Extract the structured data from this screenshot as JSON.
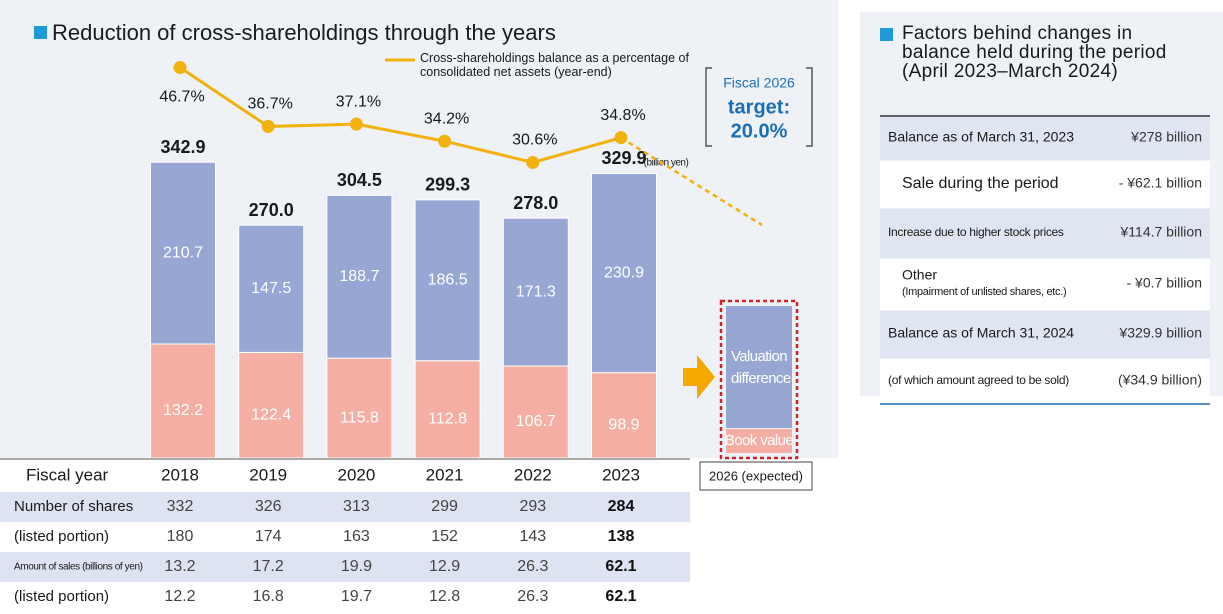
{
  "chart_data": {
    "type": "bar",
    "stacked": true,
    "title": "Reduction of cross-shareholdings through the years",
    "categories": [
      "2018",
      "2019",
      "2020",
      "2021",
      "2022",
      "2023"
    ],
    "series": [
      {
        "name": "Book value",
        "color": "#f4aea3",
        "values": [
          132.2,
          122.4,
          115.8,
          112.8,
          106.7,
          98.9
        ]
      },
      {
        "name": "Valuation difference",
        "color": "#97a6d3",
        "values": [
          210.7,
          147.5,
          188.7,
          186.5,
          171.3,
          230.9
        ]
      },
      {
        "name": "Cross-shareholdings balance as a percentage of consolidated net assets (year-end)",
        "type": "line",
        "axis": "y2",
        "color": "#f2b10c",
        "values": [
          46.7,
          36.7,
          37.1,
          34.2,
          30.6,
          34.8
        ],
        "value_labels": [
          "46.7%",
          "36.7%",
          "37.1%",
          "34.2%",
          "30.6%",
          "34.8%"
        ]
      }
    ],
    "totals": [
      342.9,
      270,
      304.5,
      299.3,
      278,
      329.9
    ],
    "total_value_labels": [
      "342.9",
      "270.0",
      "304.5",
      "299.3",
      "278.0",
      "329.9"
    ],
    "unit": "(billion yen)",
    "ylim": [
      0,
      400
    ],
    "y2lim": [
      10,
      50
    ],
    "target": {
      "title": "Fiscal 2026",
      "label": "target:",
      "value": 20,
      "value_label": "20.0%"
    },
    "expected_category": "2026 (expected)"
  },
  "table": {
    "header": "Fiscal year",
    "rows": [
      {
        "label": "Number of shares",
        "values": [
          332,
          326,
          313,
          299,
          293,
          284
        ]
      },
      {
        "label": "(listed portion)",
        "values": [
          180,
          174,
          163,
          152,
          143,
          138
        ]
      },
      {
        "label": "Amount of sales (billions of yen)",
        "values": [
          13.2,
          17.2,
          19.9,
          12.9,
          26.3,
          62.1
        ]
      },
      {
        "label": "(listed portion)",
        "values": [
          12.2,
          16.8,
          19.7,
          12.8,
          26.3,
          62.1
        ]
      }
    ]
  },
  "factors": {
    "title": "Factors behind changes in balance held during the period (April 2023–March 2024)",
    "rows": [
      {
        "label": "Balance as of March 31, 2023",
        "value": "¥278 billion"
      },
      {
        "label": "Sale during the period",
        "value": "- ¥62.1 billion"
      },
      {
        "label": "Increase due to higher stock prices",
        "value": "¥114.7 billion"
      },
      {
        "label": "Other",
        "note": "(Impairment of unlisted shares, etc.)",
        "value": "- ¥0.7 billion"
      },
      {
        "label": "Balance as of March 31, 2024",
        "value": "¥329.9 billion"
      },
      {
        "label": "(of which amount agreed to be sold)",
        "value": "(¥34.9 billion)"
      }
    ]
  }
}
